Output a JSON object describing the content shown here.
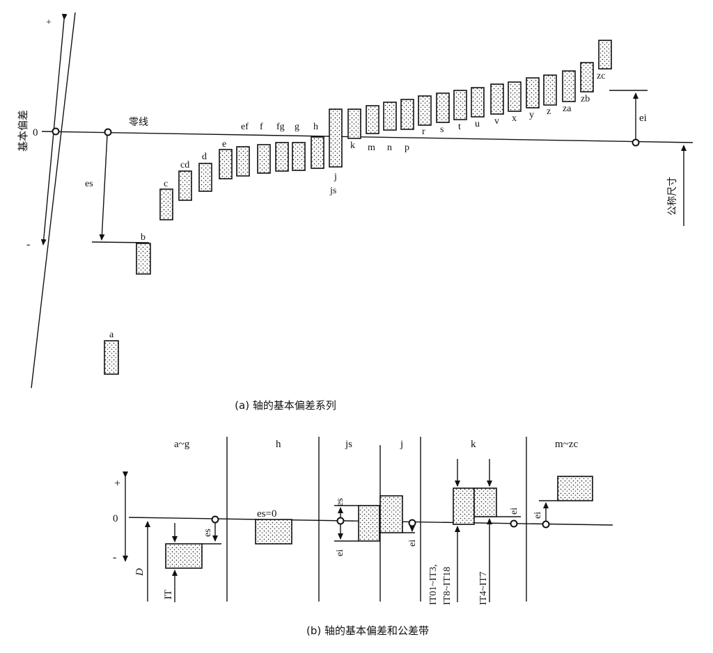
{
  "diagram_a": {
    "caption": "(a) 轴的基本偏差系列",
    "axis_label": "基本偏差",
    "plus_sign": "+",
    "minus_sign": "-",
    "zero_label": "0",
    "zero_line_label": "零线",
    "es_label": "es",
    "ei_label": "ei",
    "nominal_size_label": "公称尺寸",
    "upper_letters": [
      "a",
      "b",
      "c",
      "cd",
      "d",
      "e",
      "ef",
      "f",
      "fg",
      "g",
      "h"
    ],
    "js_labels": [
      "j",
      "js"
    ],
    "lower_letters": [
      "k",
      "m",
      "n",
      "p",
      "r",
      "s",
      "t",
      "u",
      "v",
      "x",
      "y",
      "z",
      "za",
      "zb",
      "zc"
    ]
  },
  "diagram_b": {
    "caption": "(b) 轴的基本偏差和公差带",
    "columns": [
      "a~g",
      "h",
      "js",
      "j",
      "k",
      "m~zc"
    ],
    "plus_sign": "+",
    "minus_sign": "-",
    "zero_label": "0",
    "d_label": "D",
    "it_label": "IT",
    "es_label": "es",
    "es_zero_label": "es=0",
    "ei_label": "ei",
    "it_range_1": "IT01~IT3,",
    "it_range_2": "IT8~IT18",
    "it_range_3": "IT4~IT7"
  }
}
